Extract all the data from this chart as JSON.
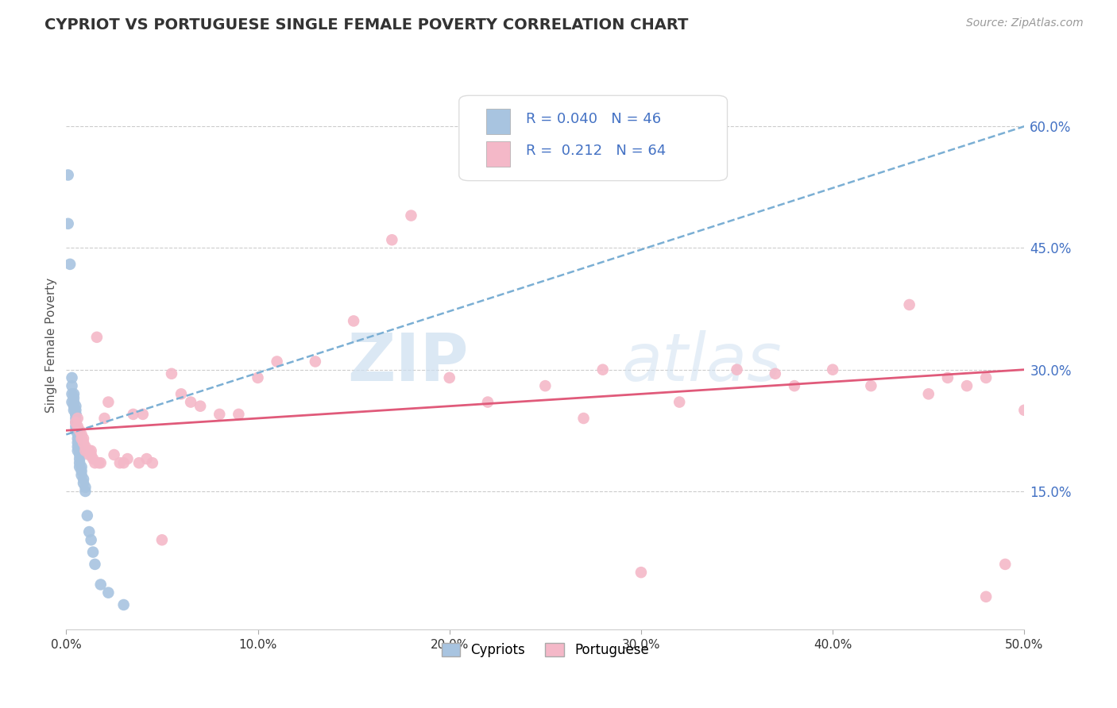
{
  "title": "CYPRIOT VS PORTUGUESE SINGLE FEMALE POVERTY CORRELATION CHART",
  "source": "Source: ZipAtlas.com",
  "ylabel": "Single Female Poverty",
  "xlim": [
    0.0,
    0.5
  ],
  "ylim": [
    -0.02,
    0.68
  ],
  "xticks": [
    0.0,
    0.1,
    0.2,
    0.3,
    0.4,
    0.5
  ],
  "xtick_labels": [
    "0.0%",
    "10.0%",
    "20.0%",
    "30.0%",
    "40.0%",
    "50.0%"
  ],
  "yticks": [
    0.15,
    0.3,
    0.45,
    0.6
  ],
  "ytick_labels": [
    "15.0%",
    "30.0%",
    "45.0%",
    "60.0%"
  ],
  "r_cypriot": 0.04,
  "n_cypriot": 46,
  "r_portuguese": 0.212,
  "n_portuguese": 64,
  "cypriot_color": "#a8c4e0",
  "portuguese_color": "#f4b8c8",
  "trend_cypriot_color": "#7bafd4",
  "trend_portuguese_color": "#e05a7a",
  "watermark_zip": "ZIP",
  "watermark_atlas": "atlas",
  "background_color": "#ffffff",
  "grid_color": "#cccccc",
  "cypriot_x": [
    0.001,
    0.001,
    0.002,
    0.003,
    0.003,
    0.003,
    0.003,
    0.004,
    0.004,
    0.004,
    0.004,
    0.004,
    0.005,
    0.005,
    0.005,
    0.005,
    0.005,
    0.005,
    0.005,
    0.005,
    0.006,
    0.006,
    0.006,
    0.006,
    0.006,
    0.006,
    0.007,
    0.007,
    0.007,
    0.007,
    0.007,
    0.008,
    0.008,
    0.008,
    0.009,
    0.009,
    0.01,
    0.01,
    0.011,
    0.012,
    0.013,
    0.014,
    0.015,
    0.018,
    0.022,
    0.03
  ],
  "cypriot_y": [
    0.54,
    0.48,
    0.43,
    0.29,
    0.28,
    0.27,
    0.26,
    0.27,
    0.265,
    0.26,
    0.255,
    0.25,
    0.255,
    0.25,
    0.245,
    0.245,
    0.24,
    0.235,
    0.23,
    0.225,
    0.225,
    0.22,
    0.215,
    0.21,
    0.205,
    0.2,
    0.2,
    0.195,
    0.19,
    0.185,
    0.18,
    0.18,
    0.175,
    0.17,
    0.165,
    0.16,
    0.155,
    0.15,
    0.12,
    0.1,
    0.09,
    0.075,
    0.06,
    0.035,
    0.025,
    0.01
  ],
  "portuguese_x": [
    0.005,
    0.006,
    0.006,
    0.007,
    0.008,
    0.008,
    0.009,
    0.009,
    0.01,
    0.01,
    0.011,
    0.012,
    0.012,
    0.013,
    0.013,
    0.014,
    0.015,
    0.016,
    0.017,
    0.018,
    0.02,
    0.022,
    0.025,
    0.028,
    0.03,
    0.032,
    0.035,
    0.038,
    0.04,
    0.042,
    0.045,
    0.05,
    0.055,
    0.06,
    0.065,
    0.07,
    0.08,
    0.09,
    0.1,
    0.11,
    0.13,
    0.15,
    0.17,
    0.18,
    0.2,
    0.22,
    0.25,
    0.27,
    0.28,
    0.3,
    0.32,
    0.35,
    0.37,
    0.38,
    0.4,
    0.42,
    0.44,
    0.45,
    0.46,
    0.47,
    0.48,
    0.48,
    0.49,
    0.5
  ],
  "portuguese_y": [
    0.235,
    0.24,
    0.23,
    0.225,
    0.22,
    0.215,
    0.215,
    0.21,
    0.205,
    0.2,
    0.2,
    0.2,
    0.195,
    0.2,
    0.195,
    0.19,
    0.185,
    0.34,
    0.185,
    0.185,
    0.24,
    0.26,
    0.195,
    0.185,
    0.185,
    0.19,
    0.245,
    0.185,
    0.245,
    0.19,
    0.185,
    0.09,
    0.295,
    0.27,
    0.26,
    0.255,
    0.245,
    0.245,
    0.29,
    0.31,
    0.31,
    0.36,
    0.46,
    0.49,
    0.29,
    0.26,
    0.28,
    0.24,
    0.3,
    0.05,
    0.26,
    0.3,
    0.295,
    0.28,
    0.3,
    0.28,
    0.38,
    0.27,
    0.29,
    0.28,
    0.29,
    0.02,
    0.06,
    0.25
  ]
}
